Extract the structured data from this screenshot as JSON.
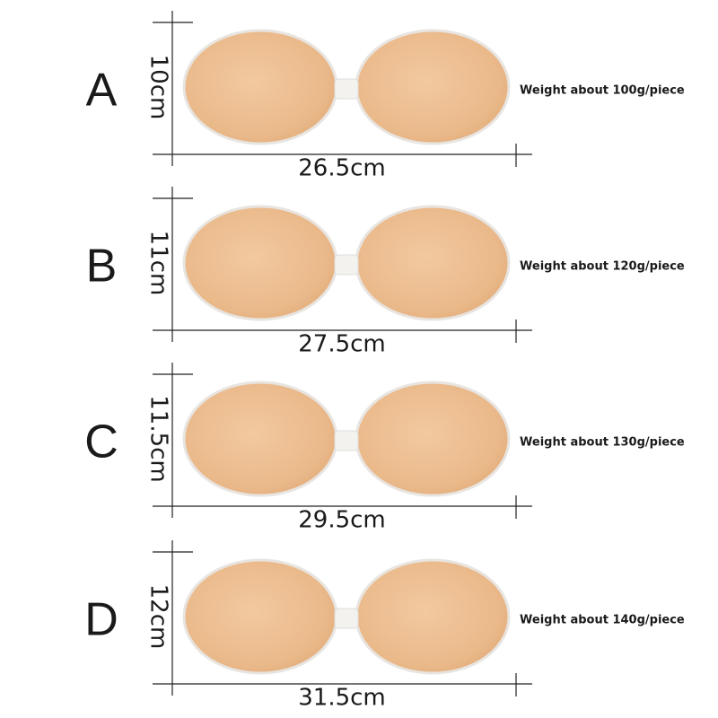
{
  "rows": [
    {
      "size": "A",
      "height": "10cm",
      "width": "26.5cm",
      "weight": "Weight about 100g/piece"
    },
    {
      "size": "B",
      "height": "11cm",
      "width": "27.5cm",
      "weight": "Weight about 120g/piece"
    },
    {
      "size": "C",
      "height": "11.5cm",
      "width": "29.5cm",
      "weight": "Weight about 130g/piece"
    },
    {
      "size": "D",
      "height": "12cm",
      "width": "31.5cm",
      "weight": "Weight about 140g/piece"
    }
  ]
}
